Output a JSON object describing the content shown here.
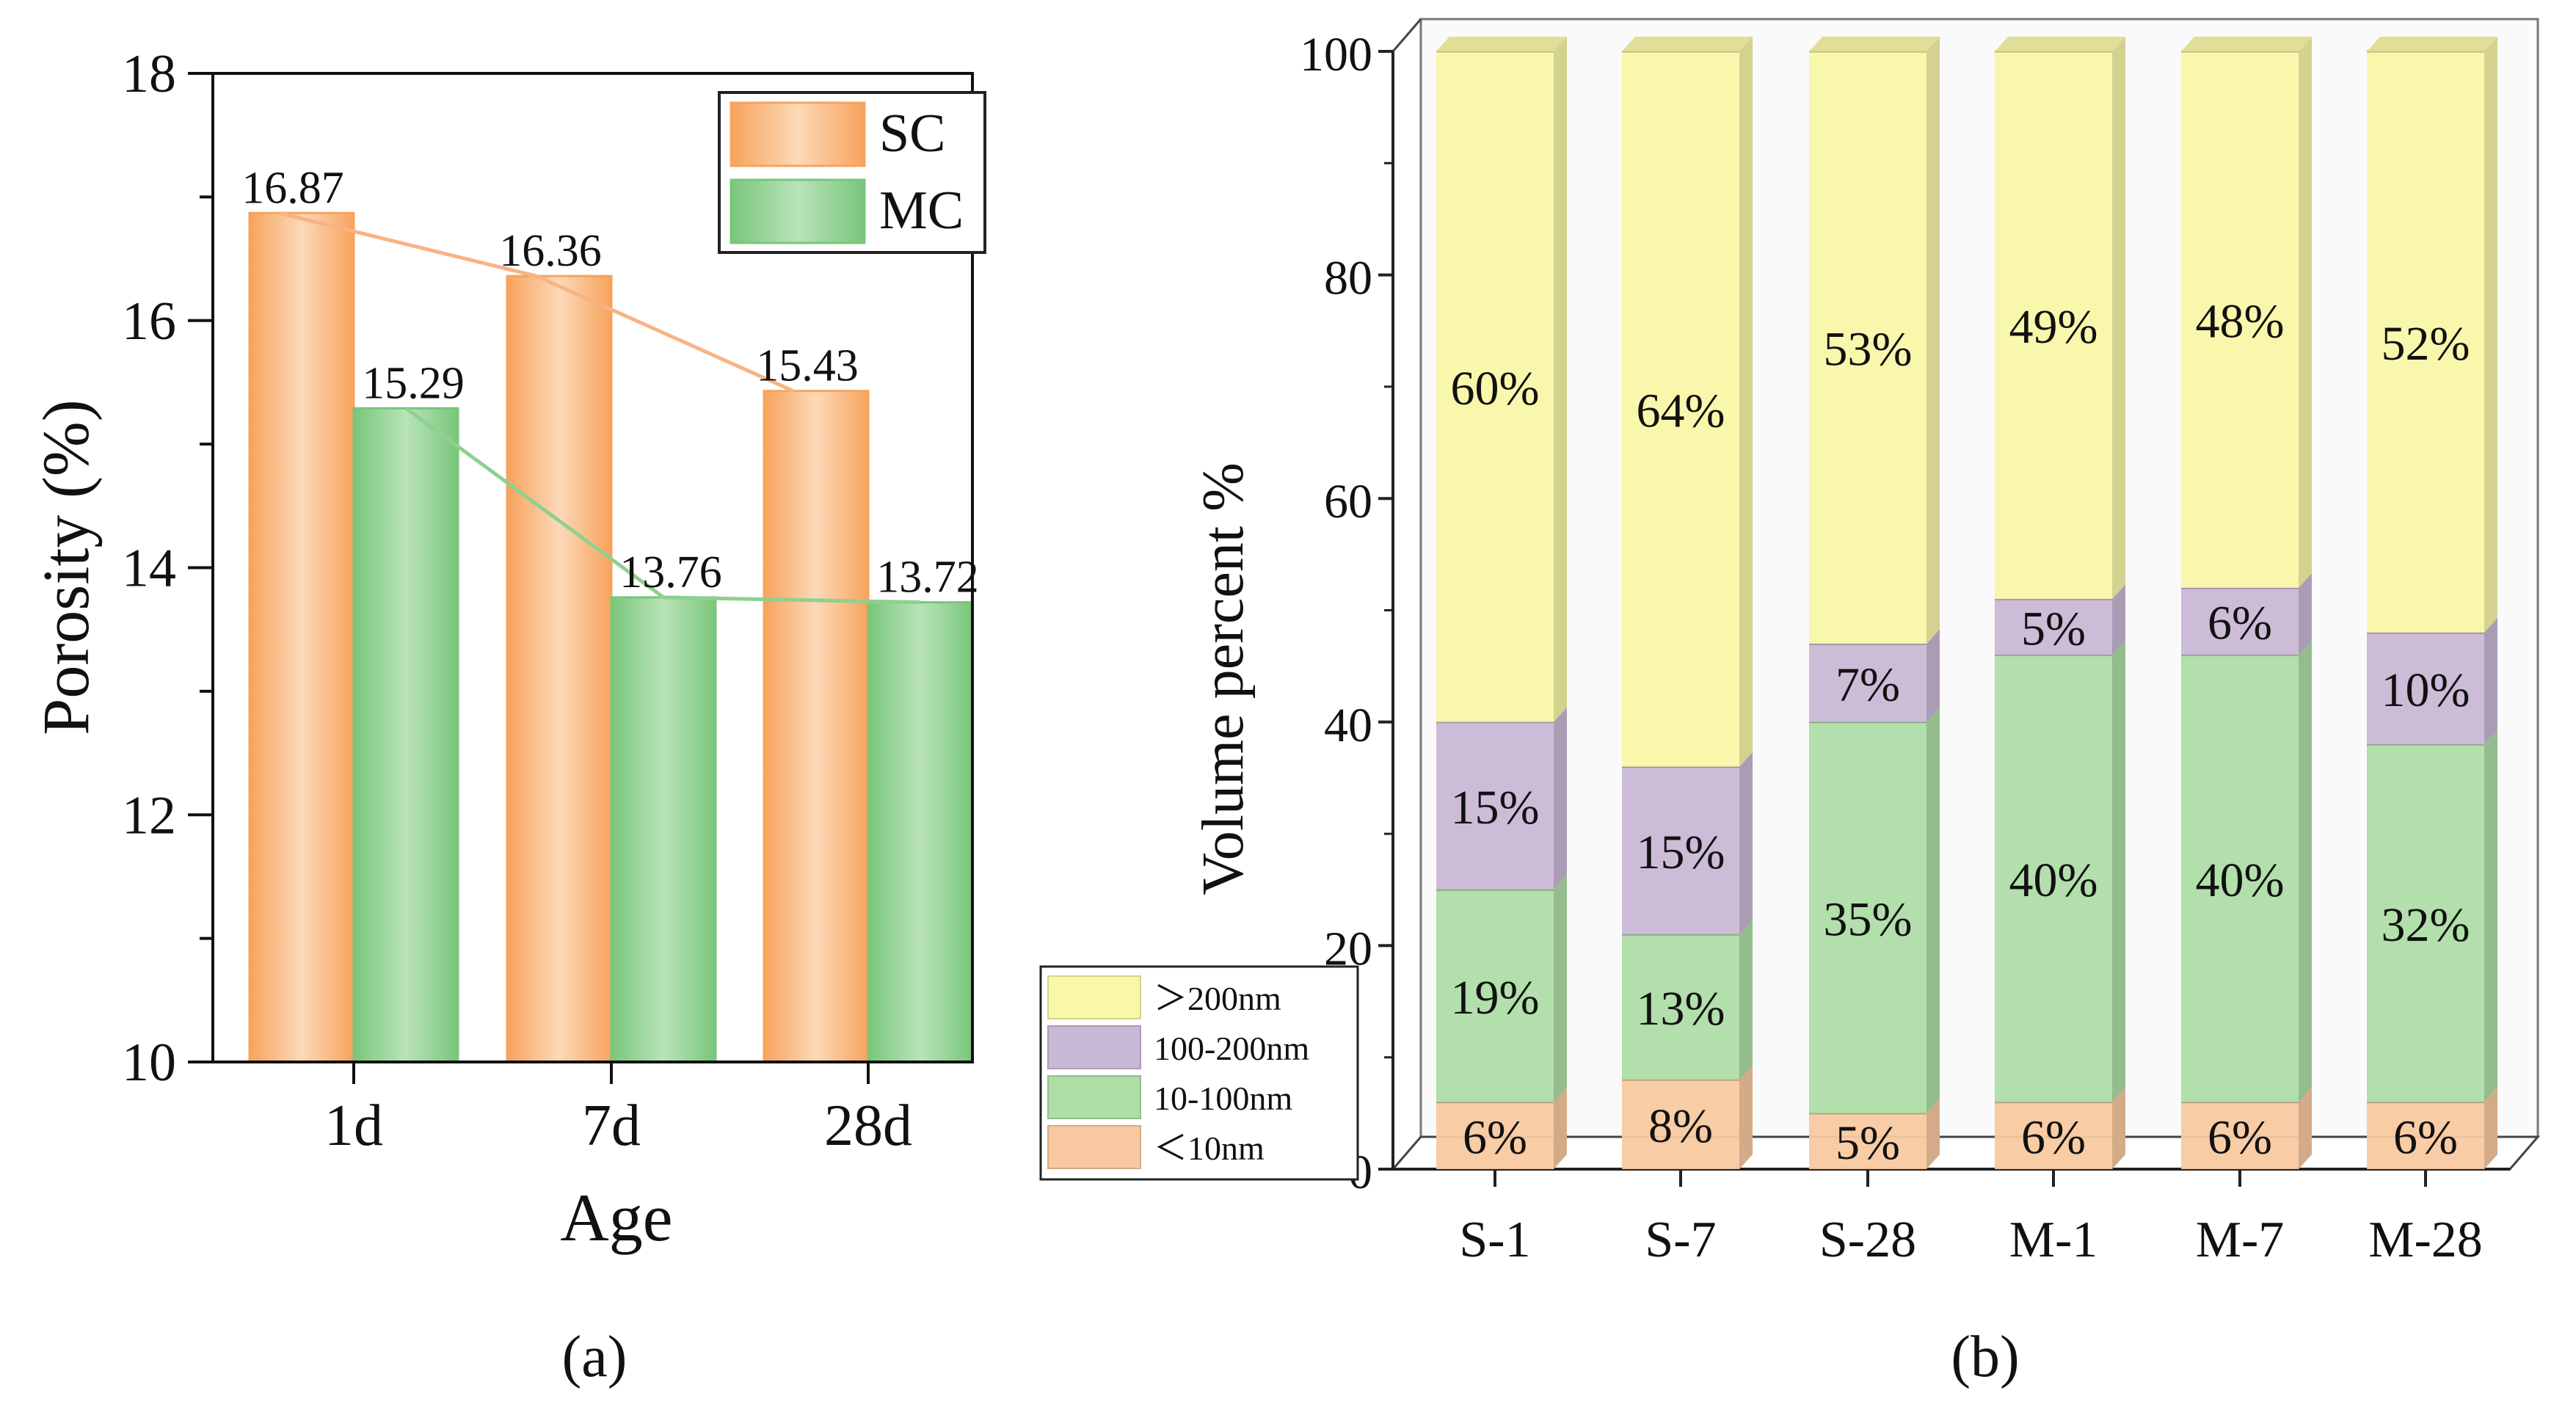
{
  "colors": {
    "sc_bar": "#f7a35c",
    "sc_bar_light": "#fcd9b8",
    "sc_line": "#f8b384",
    "mc_bar": "#79c67a",
    "mc_bar_light": "#b9e3b9",
    "mc_line": "#8fd08f",
    "lt10": "#f8c9a0",
    "r10_100": "#aedda6",
    "r100_200": "#c9b8d6",
    "gt200": "#f9f7a8"
  },
  "chart_data": [
    {
      "type": "bar",
      "panel_label": "(a)",
      "title": "",
      "xlabel": "Age",
      "ylabel": "Porosity (%)",
      "ylim": [
        10,
        18
      ],
      "yticks": [
        "10",
        "12",
        "14",
        "16",
        "18"
      ],
      "categories": [
        "1d",
        "7d",
        "28d"
      ],
      "series": [
        {
          "name": "SC",
          "values": [
            16.87,
            16.36,
            15.43
          ],
          "labels": [
            "16.87",
            "16.36",
            "15.43"
          ]
        },
        {
          "name": "MC",
          "values": [
            15.29,
            13.76,
            13.72
          ],
          "labels": [
            "15.29",
            "13.76",
            "13.72"
          ]
        }
      ],
      "legend_position": "top-right",
      "trend_lines": true
    },
    {
      "type": "bar",
      "stacked": true,
      "panel_label": "(b)",
      "title": "",
      "xlabel": "",
      "ylabel": "Volume percent %",
      "ylim": [
        0,
        100
      ],
      "yticks": [
        "0",
        "20",
        "40",
        "60",
        "80",
        "100"
      ],
      "categories": [
        "S-1",
        "S-7",
        "S-28",
        "M-1",
        "M-7",
        "M-28"
      ],
      "series": [
        {
          "name": "＜10nm",
          "values": [
            6,
            8,
            5,
            6,
            6,
            6
          ],
          "labels": [
            "6%",
            "8%",
            "5%",
            "6%",
            "6%",
            "6%"
          ]
        },
        {
          "name": "10-100nm",
          "values": [
            19,
            13,
            35,
            40,
            40,
            32
          ],
          "labels": [
            "19%",
            "13%",
            "35%",
            "40%",
            "40%",
            "32%"
          ]
        },
        {
          "name": "100-200nm",
          "values": [
            15,
            15,
            7,
            5,
            6,
            10
          ],
          "labels": [
            "15%",
            "15%",
            "7%",
            "5%",
            "6%",
            "10%"
          ]
        },
        {
          "name": "＞200nm",
          "values": [
            60,
            64,
            53,
            49,
            48,
            52
          ],
          "labels": [
            "60%",
            "64%",
            "53%",
            "49%",
            "48%",
            "52%"
          ]
        }
      ],
      "legend_order": [
        "＞200nm",
        "100-200nm",
        "10-100nm",
        "＜10nm"
      ],
      "legend_position": "bottom-left",
      "style": "3d"
    }
  ]
}
